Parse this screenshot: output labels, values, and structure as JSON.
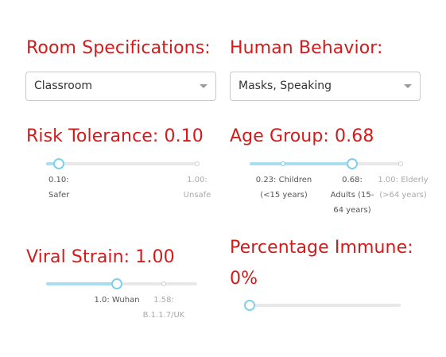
{
  "room": {
    "heading": "Room Specifications:",
    "selected": "Classroom"
  },
  "behavior": {
    "heading": "Human Behavior:",
    "selected": "Masks, Speaking"
  },
  "risk": {
    "heading": "Risk Tolerance: 0.10",
    "value": 0.1,
    "marks": [
      {
        "line1": "0.10:",
        "line2": "Safer"
      },
      {
        "line1": "1.00:",
        "line2": "Unsafe"
      }
    ]
  },
  "age": {
    "heading": "Age Group: 0.68",
    "value": 0.68,
    "marks": [
      {
        "line1": "0.23: Children",
        "line2": "(<15 years)"
      },
      {
        "line1": "0.68:",
        "line2": "Adults (15-",
        "line3": "64 years)"
      },
      {
        "line1": "1.00: Elderly",
        "line2": "(>64 years)"
      }
    ]
  },
  "viral": {
    "heading": "Viral Strain: 1.00",
    "value": 1.0,
    "marks": [
      {
        "line1": "1.0: Wuhan"
      },
      {
        "line1": "1.58:",
        "line2": "B.1.1.7/UK"
      }
    ]
  },
  "immune": {
    "heading_line1": "Percentage Immune:",
    "heading_line2": "0%",
    "value_percent": 0
  },
  "colors": {
    "heading": "#d41a1a",
    "slider_fill": "#a8def0",
    "slider_thumb_border": "#7fd0ea",
    "slider_track": "#e8e8e8"
  },
  "icons": {
    "dropdown": "chevron-down-icon"
  }
}
